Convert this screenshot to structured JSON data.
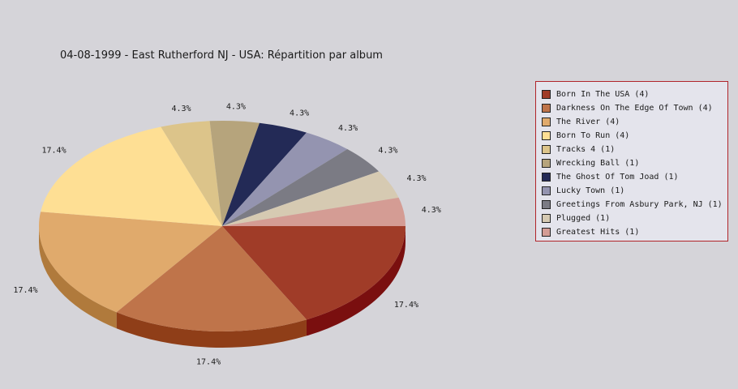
{
  "title": "04-08-1999 - East Rutherford NJ - USA:  Répartition par album",
  "chart_data": {
    "type": "pie",
    "title": "04-08-1999 - East Rutherford NJ - USA:  Répartition par album",
    "three_d": true,
    "legend_position": "right",
    "slices": [
      {
        "label": "Born In The USA (4)",
        "value": 4,
        "percent_label": "17.4%",
        "color": "#a03c28",
        "side_color": "#7a0f0f"
      },
      {
        "label": "Darkness On The Edge Of Town (4)",
        "value": 4,
        "percent_label": "17.4%",
        "color": "#bf744a",
        "side_color": "#8f3e18"
      },
      {
        "label": "The River (4)",
        "value": 4,
        "percent_label": "17.4%",
        "color": "#e0aa6c",
        "side_color": "#b07a3c"
      },
      {
        "label": "Born To Run (4)",
        "value": 4,
        "percent_label": "17.4%",
        "color": "#fedf94",
        "side_color": "#cfae60"
      },
      {
        "label": "Tracks 4 (1)",
        "value": 1,
        "percent_label": "4.3%",
        "color": "#dcc48a",
        "side_color": "#a8915a"
      },
      {
        "label": "Wrecking Ball (1)",
        "value": 1,
        "percent_label": "4.3%",
        "color": "#b6a47c",
        "side_color": "#86754f"
      },
      {
        "label": "The Ghost Of Tom Joad (1)",
        "value": 1,
        "percent_label": "4.3%",
        "color": "#232a56",
        "side_color": "#141833"
      },
      {
        "label": "Lucky Town (1)",
        "value": 1,
        "percent_label": "4.3%",
        "color": "#9494b0",
        "side_color": "#66667f"
      },
      {
        "label": "Greetings From Asbury Park, NJ (1)",
        "value": 1,
        "percent_label": "4.3%",
        "color": "#7b7b84",
        "side_color": "#55555c"
      },
      {
        "label": "Plugged (1)",
        "value": 1,
        "percent_label": "4.3%",
        "color": "#d6cab2",
        "side_color": "#a69a82"
      },
      {
        "label": "Greatest Hits (1)",
        "value": 1,
        "percent_label": "4.3%",
        "color": "#d49c94",
        "side_color": "#a46c64"
      }
    ]
  }
}
